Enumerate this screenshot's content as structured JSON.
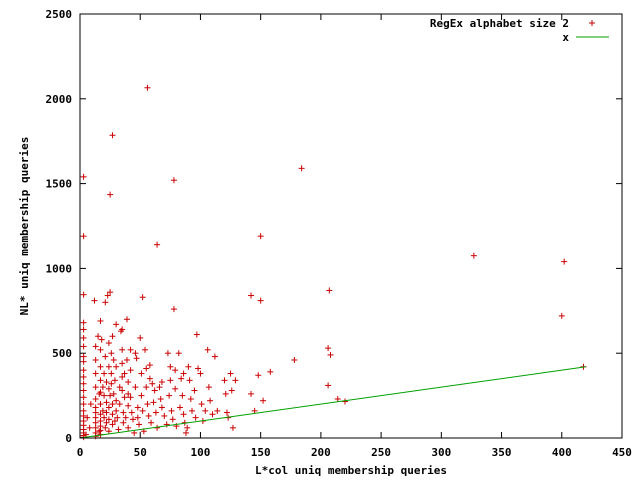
{
  "chart_data": {
    "type": "scatter",
    "xlabel": "L*col uniq membership queries",
    "ylabel": "NL* uniq membership queries",
    "xlim": [
      0,
      450
    ],
    "ylim": [
      0,
      2500
    ],
    "xticks": [
      0,
      50,
      100,
      150,
      200,
      250,
      300,
      350,
      400,
      450
    ],
    "yticks": [
      0,
      500,
      1000,
      1500,
      2000,
      2500
    ],
    "grid": false,
    "legend_position": "top-right",
    "colors": {
      "scatter": "#cc0000",
      "line": "#00a000"
    },
    "series": [
      {
        "name": "RegEx alphabet size 2",
        "marker": "plus",
        "points": [
          [
            3,
            1540
          ],
          [
            3,
            1190
          ],
          [
            3,
            845
          ],
          [
            3,
            680
          ],
          [
            3,
            640
          ],
          [
            3,
            590
          ],
          [
            3,
            540
          ],
          [
            3,
            480
          ],
          [
            3,
            450
          ],
          [
            3,
            400
          ],
          [
            3,
            360
          ],
          [
            3,
            320
          ],
          [
            3,
            280
          ],
          [
            3,
            240
          ],
          [
            3,
            200
          ],
          [
            3,
            160
          ],
          [
            3,
            130
          ],
          [
            3,
            100
          ],
          [
            3,
            75
          ],
          [
            3,
            50
          ],
          [
            3,
            30
          ],
          [
            3,
            15
          ],
          [
            3,
            5
          ],
          [
            5,
            20
          ],
          [
            6,
            120
          ],
          [
            8,
            60
          ],
          [
            9,
            200
          ],
          [
            12,
            810
          ],
          [
            13,
            540
          ],
          [
            13,
            460
          ],
          [
            13,
            380
          ],
          [
            13,
            300
          ],
          [
            13,
            230
          ],
          [
            13,
            180
          ],
          [
            13,
            150
          ],
          [
            13,
            120
          ],
          [
            13,
            90
          ],
          [
            13,
            60
          ],
          [
            13,
            30
          ],
          [
            13,
            10
          ],
          [
            15,
            600
          ],
          [
            16,
            260
          ],
          [
            16,
            40
          ],
          [
            17,
            690
          ],
          [
            17,
            520
          ],
          [
            17,
            420
          ],
          [
            17,
            340
          ],
          [
            17,
            270
          ],
          [
            17,
            200
          ],
          [
            17,
            140
          ],
          [
            17,
            100
          ],
          [
            17,
            70
          ],
          [
            17,
            45
          ],
          [
            17,
            20
          ],
          [
            18,
            580
          ],
          [
            19,
            300
          ],
          [
            19,
            160
          ],
          [
            20,
            380
          ],
          [
            20,
            250
          ],
          [
            20,
            120
          ],
          [
            21,
            800
          ],
          [
            21,
            480
          ],
          [
            21,
            60
          ],
          [
            22,
            330
          ],
          [
            22,
            210
          ],
          [
            22,
            150
          ],
          [
            22,
            90
          ],
          [
            23,
            840
          ],
          [
            24,
            560
          ],
          [
            24,
            420
          ],
          [
            24,
            290
          ],
          [
            24,
            180
          ],
          [
            24,
            110
          ],
          [
            24,
            40
          ],
          [
            25,
            860
          ],
          [
            25,
            1435
          ],
          [
            25,
            250
          ],
          [
            26,
            500
          ],
          [
            26,
            380
          ],
          [
            26,
            320
          ],
          [
            27,
            1785
          ],
          [
            27,
            600
          ],
          [
            27,
            200
          ],
          [
            27,
            140
          ],
          [
            27,
            80
          ],
          [
            28,
            460
          ],
          [
            28,
            260
          ],
          [
            29,
            340
          ],
          [
            29,
            100
          ],
          [
            30,
            670
          ],
          [
            30,
            420
          ],
          [
            30,
            220
          ],
          [
            30,
            160
          ],
          [
            31,
            120
          ],
          [
            32,
            50
          ],
          [
            33,
            300
          ],
          [
            33,
            200
          ],
          [
            34,
            630
          ],
          [
            35,
            640
          ],
          [
            35,
            520
          ],
          [
            35,
            440
          ],
          [
            35,
            360
          ],
          [
            35,
            280
          ],
          [
            36,
            150
          ],
          [
            36,
            90
          ],
          [
            37,
            380
          ],
          [
            37,
            240
          ],
          [
            38,
            120
          ],
          [
            39,
            700
          ],
          [
            39,
            460
          ],
          [
            40,
            330
          ],
          [
            40,
            260
          ],
          [
            40,
            190
          ],
          [
            40,
            60
          ],
          [
            42,
            520
          ],
          [
            42,
            400
          ],
          [
            42,
            240
          ],
          [
            43,
            150
          ],
          [
            44,
            110
          ],
          [
            45,
            30
          ],
          [
            46,
            500
          ],
          [
            46,
            300
          ],
          [
            47,
            470
          ],
          [
            48,
            180
          ],
          [
            48,
            120
          ],
          [
            49,
            80
          ],
          [
            50,
            590
          ],
          [
            51,
            380
          ],
          [
            51,
            250
          ],
          [
            52,
            830
          ],
          [
            52,
            160
          ],
          [
            53,
            40
          ],
          [
            54,
            520
          ],
          [
            55,
            410
          ],
          [
            55,
            300
          ],
          [
            56,
            2065
          ],
          [
            56,
            200
          ],
          [
            57,
            130
          ],
          [
            58,
            430
          ],
          [
            58,
            350
          ],
          [
            59,
            90
          ],
          [
            60,
            320
          ],
          [
            61,
            210
          ],
          [
            62,
            280
          ],
          [
            63,
            150
          ],
          [
            64,
            1140
          ],
          [
            64,
            60
          ],
          [
            66,
            300
          ],
          [
            67,
            230
          ],
          [
            68,
            330
          ],
          [
            68,
            180
          ],
          [
            70,
            130
          ],
          [
            72,
            80
          ],
          [
            73,
            500
          ],
          [
            74,
            250
          ],
          [
            75,
            420
          ],
          [
            75,
            340
          ],
          [
            76,
            160
          ],
          [
            77,
            110
          ],
          [
            78,
            1520
          ],
          [
            78,
            760
          ],
          [
            79,
            400
          ],
          [
            79,
            290
          ],
          [
            80,
            70
          ],
          [
            82,
            500
          ],
          [
            83,
            180
          ],
          [
            84,
            350
          ],
          [
            85,
            250
          ],
          [
            86,
            380
          ],
          [
            86,
            140
          ],
          [
            87,
            90
          ],
          [
            88,
            30
          ],
          [
            89,
            60
          ],
          [
            90,
            420
          ],
          [
            91,
            340
          ],
          [
            92,
            230
          ],
          [
            93,
            160
          ],
          [
            95,
            280
          ],
          [
            96,
            120
          ],
          [
            97,
            610
          ],
          [
            98,
            410
          ],
          [
            100,
            380
          ],
          [
            101,
            200
          ],
          [
            102,
            100
          ],
          [
            104,
            160
          ],
          [
            106,
            520
          ],
          [
            107,
            300
          ],
          [
            108,
            220
          ],
          [
            110,
            140
          ],
          [
            112,
            480
          ],
          [
            114,
            160
          ],
          [
            120,
            340
          ],
          [
            121,
            260
          ],
          [
            122,
            150
          ],
          [
            123,
            120
          ],
          [
            125,
            380
          ],
          [
            126,
            280
          ],
          [
            127,
            60
          ],
          [
            129,
            340
          ],
          [
            142,
            260
          ],
          [
            142,
            840
          ],
          [
            145,
            160
          ],
          [
            148,
            370
          ],
          [
            150,
            810
          ],
          [
            150,
            1190
          ],
          [
            152,
            220
          ],
          [
            158,
            390
          ],
          [
            178,
            460
          ],
          [
            184,
            1590
          ],
          [
            206,
            530
          ],
          [
            206,
            310
          ],
          [
            207,
            870
          ],
          [
            208,
            490
          ],
          [
            214,
            230
          ],
          [
            220,
            215
          ],
          [
            327,
            1075
          ],
          [
            400,
            720
          ],
          [
            402,
            1040
          ],
          [
            418,
            420
          ]
        ]
      },
      {
        "name": "x",
        "line": "y = x",
        "points": [
          [
            0,
            0
          ],
          [
            420,
            420
          ]
        ]
      }
    ]
  }
}
